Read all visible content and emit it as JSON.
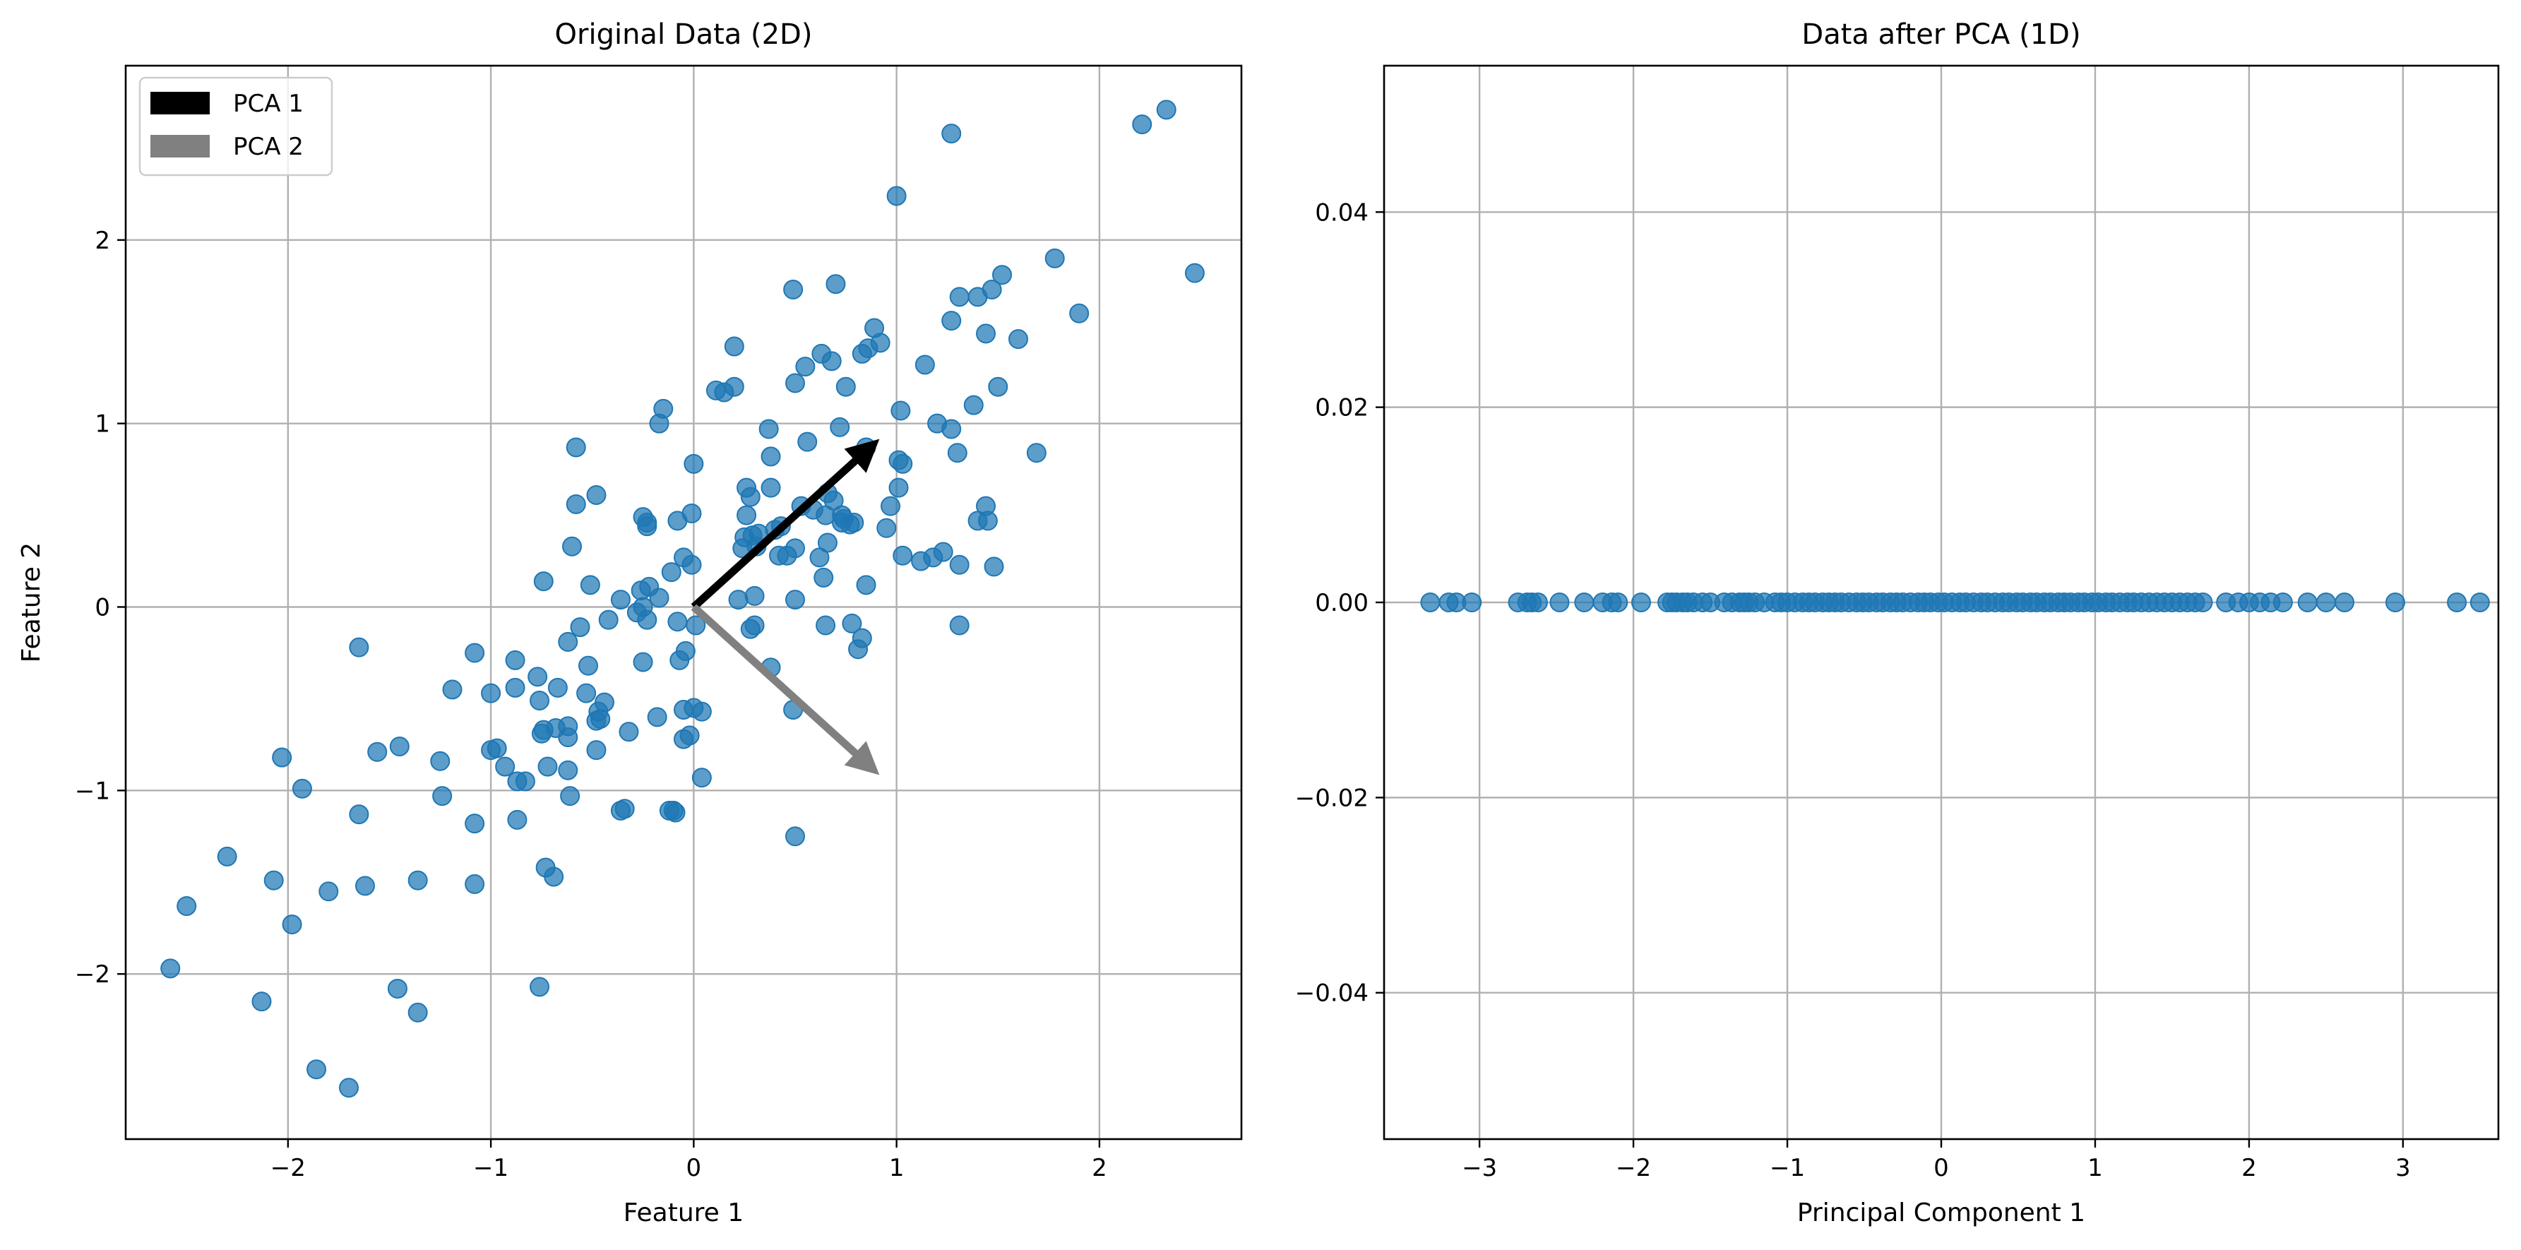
{
  "colors": {
    "point": "#1f77b4",
    "pca1": "#000000",
    "pca2": "#808080",
    "grid": "#b0b0b0"
  },
  "chart_data": [
    {
      "type": "scatter",
      "title": "Original Data (2D)",
      "xlabel": "Feature 1",
      "ylabel": "Feature 2",
      "xlim": [
        -2.8,
        2.7
      ],
      "ylim": [
        -2.9,
        2.95
      ],
      "xticks": [
        -2,
        -1,
        0,
        1,
        2
      ],
      "yticks": [
        -2,
        -1,
        0,
        1,
        2
      ],
      "xtick_labels": [
        "−2",
        "−1",
        "0",
        "1",
        "2"
      ],
      "ytick_labels": [
        "−2",
        "−1",
        "0",
        "1",
        "2"
      ],
      "grid": true,
      "legend_position": "top-left",
      "legend": [
        {
          "label": "PCA 1",
          "color": "#000000"
        },
        {
          "label": "PCA 2",
          "color": "#808080"
        }
      ],
      "vectors": [
        {
          "name": "PCA 1",
          "from": [
            0,
            0
          ],
          "to": [
            0.82,
            0.82
          ],
          "color": "#000000"
        },
        {
          "name": "PCA 2",
          "from": [
            0,
            0
          ],
          "to": [
            0.82,
            -0.82
          ],
          "color": "#808080"
        }
      ],
      "points": [
        [
          2.33,
          2.71
        ],
        [
          2.21,
          2.63
        ],
        [
          1.27,
          2.58
        ],
        [
          2.47,
          1.82
        ],
        [
          1.0,
          2.24
        ],
        [
          1.78,
          1.9
        ],
        [
          1.9,
          1.6
        ],
        [
          1.52,
          1.81
        ],
        [
          1.47,
          1.73
        ],
        [
          1.31,
          1.69
        ],
        [
          1.4,
          1.69
        ],
        [
          1.6,
          1.46
        ],
        [
          1.27,
          1.56
        ],
        [
          1.44,
          1.49
        ],
        [
          1.5,
          1.2
        ],
        [
          1.69,
          0.84
        ],
        [
          1.14,
          1.32
        ],
        [
          1.38,
          1.1
        ],
        [
          0.7,
          1.76
        ],
        [
          0.49,
          1.73
        ],
        [
          0.89,
          1.52
        ],
        [
          0.92,
          1.44
        ],
        [
          0.86,
          1.41
        ],
        [
          0.83,
          1.38
        ],
        [
          0.63,
          1.38
        ],
        [
          0.68,
          1.34
        ],
        [
          0.55,
          1.31
        ],
        [
          0.75,
          1.2
        ],
        [
          0.5,
          1.22
        ],
        [
          0.2,
          1.42
        ],
        [
          0.2,
          1.2
        ],
        [
          0.11,
          1.18
        ],
        [
          0.15,
          1.17
        ],
        [
          -0.15,
          1.08
        ],
        [
          -0.17,
          1.0
        ],
        [
          0.37,
          0.97
        ],
        [
          0.72,
          0.98
        ],
        [
          0.56,
          0.9
        ],
        [
          0.85,
          0.87
        ],
        [
          1.02,
          1.07
        ],
        [
          1.2,
          1.0
        ],
        [
          1.27,
          0.97
        ],
        [
          1.3,
          0.84
        ],
        [
          1.01,
          0.8
        ],
        [
          1.03,
          0.78
        ],
        [
          1.01,
          0.65
        ],
        [
          0.97,
          0.55
        ],
        [
          0.95,
          0.43
        ],
        [
          1.03,
          0.28
        ],
        [
          1.12,
          0.25
        ],
        [
          1.18,
          0.27
        ],
        [
          1.23,
          0.3
        ],
        [
          1.31,
          0.23
        ],
        [
          1.4,
          0.47
        ],
        [
          1.44,
          0.55
        ],
        [
          1.45,
          0.47
        ],
        [
          1.48,
          0.22
        ],
        [
          1.31,
          -0.1
        ],
        [
          0.38,
          0.82
        ],
        [
          0.38,
          0.65
        ],
        [
          0.26,
          0.65
        ],
        [
          0.26,
          0.5
        ],
        [
          0.28,
          0.6
        ],
        [
          0.66,
          0.62
        ],
        [
          0.69,
          0.58
        ],
        [
          0.73,
          0.5
        ],
        [
          0.74,
          0.48
        ],
        [
          0.77,
          0.45
        ],
        [
          0.79,
          0.46
        ],
        [
          0.73,
          0.46
        ],
        [
          0.53,
          0.55
        ],
        [
          0.59,
          0.53
        ],
        [
          0.65,
          0.5
        ],
        [
          0.66,
          0.35
        ],
        [
          0.62,
          0.27
        ],
        [
          0.43,
          0.44
        ],
        [
          0.4,
          0.42
        ],
        [
          0.32,
          0.4
        ],
        [
          0.29,
          0.39
        ],
        [
          0.25,
          0.38
        ],
        [
          0.24,
          0.32
        ],
        [
          0.31,
          0.33
        ],
        [
          0.42,
          0.28
        ],
        [
          0.46,
          0.28
        ],
        [
          0.5,
          0.32
        ],
        [
          0.64,
          0.16
        ],
        [
          0.85,
          0.12
        ],
        [
          0.22,
          0.04
        ],
        [
          0.3,
          0.06
        ],
        [
          0.5,
          0.04
        ],
        [
          0.3,
          -0.1
        ],
        [
          0.28,
          -0.12
        ],
        [
          0.38,
          -0.33
        ],
        [
          0.49,
          -0.56
        ],
        [
          0.5,
          -1.25
        ],
        [
          0.65,
          -0.1
        ],
        [
          0.78,
          -0.09
        ],
        [
          0.83,
          -0.17
        ],
        [
          0.81,
          -0.23
        ],
        [
          -0.58,
          0.87
        ],
        [
          -0.58,
          0.56
        ],
        [
          -0.48,
          0.61
        ],
        [
          -0.6,
          0.33
        ],
        [
          -0.74,
          0.14
        ],
        [
          -0.51,
          0.12
        ],
        [
          -0.25,
          0.49
        ],
        [
          -0.23,
          0.46
        ],
        [
          -0.23,
          0.44
        ],
        [
          -0.08,
          0.47
        ],
        [
          0.0,
          0.78
        ],
        [
          -0.01,
          0.51
        ],
        [
          -0.05,
          0.27
        ],
        [
          -0.01,
          0.23
        ],
        [
          -0.11,
          0.19
        ],
        [
          -0.22,
          0.11
        ],
        [
          -0.26,
          0.09
        ],
        [
          -0.17,
          0.05
        ],
        [
          -0.36,
          0.04
        ],
        [
          -0.25,
          0.0
        ],
        [
          -0.28,
          -0.03
        ],
        [
          -0.23,
          -0.07
        ],
        [
          -0.42,
          -0.07
        ],
        [
          -0.56,
          -0.11
        ],
        [
          -0.62,
          -0.19
        ],
        [
          -0.08,
          -0.08
        ],
        [
          0.01,
          -0.1
        ],
        [
          -0.04,
          -0.24
        ],
        [
          -0.07,
          -0.29
        ],
        [
          -0.25,
          -0.3
        ],
        [
          -0.52,
          -0.32
        ],
        [
          -0.77,
          -0.38
        ],
        [
          -0.88,
          -0.29
        ],
        [
          -0.67,
          -0.44
        ],
        [
          -0.53,
          -0.47
        ],
        [
          -0.76,
          -0.51
        ],
        [
          -0.44,
          -0.52
        ],
        [
          -0.47,
          -0.57
        ],
        [
          -0.46,
          -0.61
        ],
        [
          -0.48,
          -0.62
        ],
        [
          -0.62,
          -0.65
        ],
        [
          -0.68,
          -0.66
        ],
        [
          -0.74,
          -0.67
        ],
        [
          -0.75,
          -0.69
        ],
        [
          -0.62,
          -0.71
        ],
        [
          -0.48,
          -0.78
        ],
        [
          -0.32,
          -0.68
        ],
        [
          -0.18,
          -0.6
        ],
        [
          -0.05,
          -0.56
        ],
        [
          0.0,
          -0.55
        ],
        [
          0.04,
          -0.57
        ],
        [
          -0.02,
          -0.7
        ],
        [
          -0.05,
          -0.72
        ],
        [
          0.04,
          -0.93
        ],
        [
          -0.88,
          -0.44
        ],
        [
          -0.87,
          -0.95
        ],
        [
          -0.83,
          -0.95
        ],
        [
          -0.93,
          -0.87
        ],
        [
          -0.97,
          -0.77
        ],
        [
          -1.0,
          -0.78
        ],
        [
          -1.0,
          -0.47
        ],
        [
          -1.08,
          -0.25
        ],
        [
          -1.19,
          -0.45
        ],
        [
          -1.25,
          -0.84
        ],
        [
          -1.24,
          -1.03
        ],
        [
          -1.08,
          -1.18
        ],
        [
          -0.87,
          -1.16
        ],
        [
          -0.61,
          -1.03
        ],
        [
          -0.62,
          -0.89
        ],
        [
          -0.72,
          -0.87
        ],
        [
          -0.34,
          -1.1
        ],
        [
          -0.36,
          -1.11
        ],
        [
          -0.12,
          -1.11
        ],
        [
          -0.1,
          -1.11
        ],
        [
          -0.09,
          -1.12
        ],
        [
          -0.73,
          -1.42
        ],
        [
          -0.69,
          -1.47
        ],
        [
          -1.08,
          -1.51
        ],
        [
          -1.36,
          -1.49
        ],
        [
          -1.62,
          -1.52
        ],
        [
          -1.45,
          -0.76
        ],
        [
          -1.56,
          -0.79
        ],
        [
          -1.65,
          -0.22
        ],
        [
          -1.65,
          -1.13
        ],
        [
          -2.03,
          -0.82
        ],
        [
          -1.93,
          -0.99
        ],
        [
          -2.3,
          -1.36
        ],
        [
          -2.07,
          -1.49
        ],
        [
          -1.98,
          -1.73
        ],
        [
          -1.8,
          -1.55
        ],
        [
          -2.5,
          -1.63
        ],
        [
          -2.13,
          -2.15
        ],
        [
          -1.46,
          -2.08
        ],
        [
          -1.36,
          -2.21
        ],
        [
          -0.76,
          -2.07
        ],
        [
          -1.86,
          -2.52
        ],
        [
          -1.7,
          -2.62
        ],
        [
          -2.58,
          -1.97
        ]
      ]
    },
    {
      "type": "scatter",
      "title": "Data after PCA (1D)",
      "xlabel": "Principal Component 1",
      "ylabel": "",
      "xlim": [
        -3.62,
        3.62
      ],
      "ylim": [
        -0.055,
        0.055
      ],
      "xticks": [
        -3,
        -2,
        -1,
        0,
        1,
        2,
        3
      ],
      "yticks": [
        -0.04,
        -0.02,
        0.0,
        0.02,
        0.04
      ],
      "xtick_labels": [
        "−3",
        "−2",
        "−1",
        "0",
        "1",
        "2",
        "3"
      ],
      "ytick_labels": [
        "−0.04",
        "−0.02",
        "0.00",
        "0.02",
        "0.04"
      ],
      "grid": true,
      "points_x": [
        -3.32,
        -3.2,
        -3.15,
        -3.05,
        -2.75,
        -2.69,
        -2.66,
        -2.62,
        -2.48,
        -2.32,
        -2.2,
        -2.14,
        -2.1,
        -1.95,
        -1.78,
        -1.75,
        -1.72,
        -1.68,
        -1.65,
        -1.61,
        -1.55,
        -1.5,
        -1.41,
        -1.36,
        -1.31,
        -1.28,
        -1.25,
        -1.21,
        -1.15,
        -1.08,
        -1.04,
        -1.0,
        -0.95,
        -0.9,
        -0.86,
        -0.82,
        -0.77,
        -0.73,
        -0.69,
        -0.65,
        -0.6,
        -0.55,
        -0.51,
        -0.47,
        -0.42,
        -0.38,
        -0.33,
        -0.29,
        -0.25,
        -0.2,
        -0.15,
        -0.11,
        -0.07,
        -0.02,
        0.02,
        0.07,
        0.12,
        0.16,
        0.21,
        0.26,
        0.3,
        0.35,
        0.4,
        0.44,
        0.49,
        0.53,
        0.58,
        0.62,
        0.67,
        0.71,
        0.76,
        0.8,
        0.84,
        0.89,
        0.93,
        0.98,
        1.02,
        1.07,
        1.11,
        1.16,
        1.21,
        1.25,
        1.3,
        1.35,
        1.4,
        1.45,
        1.5,
        1.55,
        1.6,
        1.65,
        1.7,
        1.85,
        1.93,
        2.0,
        2.07,
        2.14,
        2.22,
        2.38,
        2.5,
        2.62,
        2.95,
        3.35,
        3.5
      ]
    }
  ]
}
